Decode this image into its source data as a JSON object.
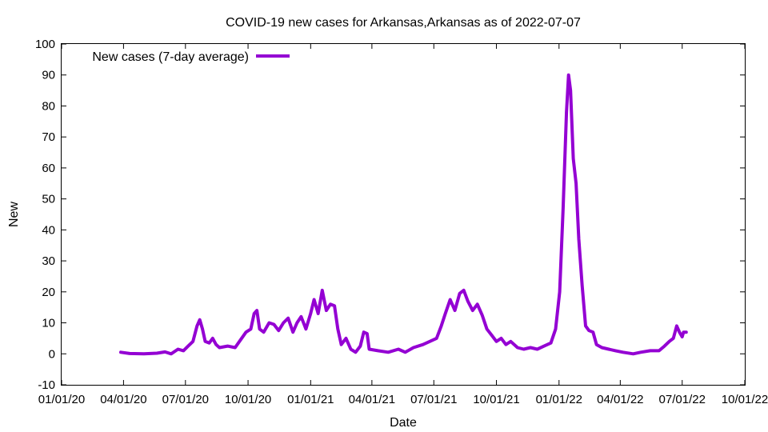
{
  "chart_data": {
    "type": "line",
    "title": "COVID-19 new cases for Arkansas,Arkansas as of 2022-07-07",
    "xlabel": "Date",
    "ylabel": "New",
    "xlim": [
      "2020-01-01",
      "2022-10-01"
    ],
    "ylim": [
      -10,
      100
    ],
    "x_ticks": [
      {
        "date": "2020-01-01",
        "label": "01/01/20"
      },
      {
        "date": "2020-04-01",
        "label": "04/01/20"
      },
      {
        "date": "2020-07-01",
        "label": "07/01/20"
      },
      {
        "date": "2020-10-01",
        "label": "10/01/20"
      },
      {
        "date": "2021-01-01",
        "label": "01/01/21"
      },
      {
        "date": "2021-04-01",
        "label": "04/01/21"
      },
      {
        "date": "2021-07-01",
        "label": "07/01/21"
      },
      {
        "date": "2021-10-01",
        "label": "10/01/21"
      },
      {
        "date": "2022-01-01",
        "label": "01/01/22"
      },
      {
        "date": "2022-04-01",
        "label": "04/01/22"
      },
      {
        "date": "2022-07-01",
        "label": "07/01/22"
      },
      {
        "date": "2022-10-01",
        "label": "10/01/22"
      }
    ],
    "y_ticks": [
      -10,
      0,
      10,
      20,
      30,
      40,
      50,
      60,
      70,
      80,
      90,
      100
    ],
    "grid": false,
    "legend": "top-left",
    "series": [
      {
        "name": "New cases (7-day average)",
        "color": "#9400d3",
        "points": [
          [
            "2020-03-28",
            0.5
          ],
          [
            "2020-04-10",
            0.1
          ],
          [
            "2020-05-01",
            0.0
          ],
          [
            "2020-05-20",
            0.2
          ],
          [
            "2020-06-01",
            0.6
          ],
          [
            "2020-06-10",
            0.0
          ],
          [
            "2020-06-20",
            1.5
          ],
          [
            "2020-06-28",
            1.0
          ],
          [
            "2020-07-05",
            2.5
          ],
          [
            "2020-07-12",
            4.0
          ],
          [
            "2020-07-18",
            9.0
          ],
          [
            "2020-07-22",
            11.0
          ],
          [
            "2020-07-26",
            8.0
          ],
          [
            "2020-07-30",
            4.0
          ],
          [
            "2020-08-05",
            3.5
          ],
          [
            "2020-08-10",
            5.0
          ],
          [
            "2020-08-15",
            3.0
          ],
          [
            "2020-08-20",
            2.0
          ],
          [
            "2020-09-01",
            2.5
          ],
          [
            "2020-09-12",
            2.0
          ],
          [
            "2020-09-20",
            4.5
          ],
          [
            "2020-09-28",
            7.0
          ],
          [
            "2020-10-05",
            8.0
          ],
          [
            "2020-10-10",
            13.0
          ],
          [
            "2020-10-14",
            14.0
          ],
          [
            "2020-10-18",
            8.0
          ],
          [
            "2020-10-24",
            7.0
          ],
          [
            "2020-11-01",
            10.0
          ],
          [
            "2020-11-08",
            9.5
          ],
          [
            "2020-11-15",
            7.5
          ],
          [
            "2020-11-22",
            10.0
          ],
          [
            "2020-11-29",
            11.5
          ],
          [
            "2020-12-06",
            7.0
          ],
          [
            "2020-12-12",
            10.0
          ],
          [
            "2020-12-18",
            12.0
          ],
          [
            "2020-12-25",
            8.0
          ],
          [
            "2021-01-01",
            13.0
          ],
          [
            "2021-01-06",
            17.5
          ],
          [
            "2021-01-12",
            13.0
          ],
          [
            "2021-01-18",
            20.5
          ],
          [
            "2021-01-24",
            14.0
          ],
          [
            "2021-01-30",
            16.0
          ],
          [
            "2021-02-05",
            15.5
          ],
          [
            "2021-02-10",
            8.0
          ],
          [
            "2021-02-15",
            3.0
          ],
          [
            "2021-02-22",
            5.0
          ],
          [
            "2021-03-01",
            1.5
          ],
          [
            "2021-03-08",
            0.5
          ],
          [
            "2021-03-15",
            2.5
          ],
          [
            "2021-03-20",
            7.0
          ],
          [
            "2021-03-25",
            6.5
          ],
          [
            "2021-03-28",
            1.5
          ],
          [
            "2021-04-10",
            1.0
          ],
          [
            "2021-04-25",
            0.5
          ],
          [
            "2021-05-10",
            1.5
          ],
          [
            "2021-05-20",
            0.5
          ],
          [
            "2021-06-01",
            2.0
          ],
          [
            "2021-06-15",
            3.0
          ],
          [
            "2021-06-25",
            4.0
          ],
          [
            "2021-07-05",
            5.0
          ],
          [
            "2021-07-12",
            9.0
          ],
          [
            "2021-07-18",
            13.0
          ],
          [
            "2021-07-25",
            17.5
          ],
          [
            "2021-08-01",
            14.0
          ],
          [
            "2021-08-08",
            19.5
          ],
          [
            "2021-08-14",
            20.5
          ],
          [
            "2021-08-20",
            17.0
          ],
          [
            "2021-08-27",
            14.0
          ],
          [
            "2021-09-03",
            16.0
          ],
          [
            "2021-09-10",
            12.5
          ],
          [
            "2021-09-17",
            8.0
          ],
          [
            "2021-09-24",
            6.0
          ],
          [
            "2021-10-01",
            4.0
          ],
          [
            "2021-10-08",
            5.0
          ],
          [
            "2021-10-15",
            3.0
          ],
          [
            "2021-10-22",
            4.0
          ],
          [
            "2021-11-01",
            2.0
          ],
          [
            "2021-11-10",
            1.5
          ],
          [
            "2021-11-20",
            2.0
          ],
          [
            "2021-11-30",
            1.5
          ],
          [
            "2021-12-10",
            2.5
          ],
          [
            "2021-12-20",
            3.5
          ],
          [
            "2021-12-27",
            8.0
          ],
          [
            "2022-01-02",
            20.0
          ],
          [
            "2022-01-07",
            47.0
          ],
          [
            "2022-01-12",
            78.0
          ],
          [
            "2022-01-15",
            90.0
          ],
          [
            "2022-01-18",
            85.0
          ],
          [
            "2022-01-22",
            63.0
          ],
          [
            "2022-01-26",
            55.0
          ],
          [
            "2022-01-30",
            37.0
          ],
          [
            "2022-02-04",
            22.0
          ],
          [
            "2022-02-09",
            9.0
          ],
          [
            "2022-02-14",
            7.5
          ],
          [
            "2022-02-20",
            7.0
          ],
          [
            "2022-02-25",
            3.0
          ],
          [
            "2022-03-05",
            2.0
          ],
          [
            "2022-03-15",
            1.5
          ],
          [
            "2022-03-25",
            1.0
          ],
          [
            "2022-04-05",
            0.5
          ],
          [
            "2022-04-20",
            0.0
          ],
          [
            "2022-05-01",
            0.5
          ],
          [
            "2022-05-15",
            1.0
          ],
          [
            "2022-05-28",
            1.0
          ],
          [
            "2022-06-05",
            2.5
          ],
          [
            "2022-06-12",
            4.0
          ],
          [
            "2022-06-18",
            5.0
          ],
          [
            "2022-06-23",
            9.0
          ],
          [
            "2022-06-27",
            7.0
          ],
          [
            "2022-07-01",
            5.5
          ],
          [
            "2022-07-03",
            7.0
          ],
          [
            "2022-07-07",
            7.0
          ]
        ]
      }
    ]
  }
}
